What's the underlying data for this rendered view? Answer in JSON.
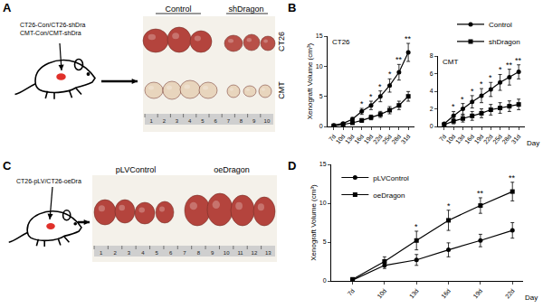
{
  "panels": {
    "A": {
      "label": "A",
      "cell_lines": [
        "CT26-Con/CT26-shDra",
        "CMT-Con/CMT-shDra"
      ],
      "groups": [
        "Control",
        "shDragon"
      ],
      "rows": [
        "CT26",
        "CMT"
      ],
      "ruler": [
        1,
        2,
        3,
        4,
        5,
        6,
        7,
        8,
        9,
        10
      ]
    },
    "B": {
      "label": "B"
    },
    "C": {
      "label": "C",
      "cell_lines": [
        "CT26-pLV/CT26-oeDra"
      ],
      "groups": [
        "pLVControl",
        "oeDragon"
      ],
      "ruler": [
        1,
        2,
        3,
        4,
        5,
        6,
        7,
        8,
        9,
        10,
        11,
        12,
        13
      ]
    },
    "D": {
      "label": "D"
    }
  },
  "chart_data": [
    {
      "type": "line",
      "title": "CT26",
      "y_label": "Xenograft Volume (cm³)",
      "x": [
        7,
        10,
        13,
        16,
        19,
        22,
        25,
        28,
        31
      ],
      "xlim": [
        5,
        33
      ],
      "xticks": [
        {
          "value": 7,
          "label": "7d"
        },
        {
          "value": 10,
          "label": "10d"
        },
        {
          "value": 13,
          "label": "13d"
        },
        {
          "value": 16,
          "label": "16d"
        },
        {
          "value": 19,
          "label": "19d"
        },
        {
          "value": 22,
          "label": "22d"
        },
        {
          "value": 25,
          "label": "25d"
        },
        {
          "value": 28,
          "label": "28d"
        },
        {
          "value": 31,
          "label": "31d"
        }
      ],
      "ylim": [
        0,
        15
      ],
      "yticks": [
        0,
        5,
        10,
        15
      ],
      "series": [
        {
          "name": "Control",
          "color": "#000000",
          "marker": "circle",
          "values": [
            0.2,
            0.5,
            1.2,
            2.5,
            3.5,
            5.0,
            6.8,
            9.0,
            12.3
          ],
          "errors": [
            0.05,
            0.1,
            0.3,
            0.5,
            0.7,
            0.9,
            1.1,
            1.3,
            1.5
          ]
        },
        {
          "name": "shDragon",
          "color": "#000000",
          "marker": "square",
          "values": [
            0.1,
            0.3,
            0.6,
            1.0,
            1.5,
            2.0,
            2.7,
            3.5,
            5.0
          ],
          "errors": [
            0.05,
            0.1,
            0.2,
            0.3,
            0.4,
            0.5,
            0.6,
            0.7,
            0.8
          ]
        }
      ],
      "annotations": [
        {
          "x": 16,
          "text": "*"
        },
        {
          "x": 19,
          "text": "*"
        },
        {
          "x": 22,
          "text": "*"
        },
        {
          "x": 25,
          "text": "*"
        },
        {
          "x": 28,
          "text": "**"
        },
        {
          "x": 31,
          "text": "**"
        }
      ]
    },
    {
      "type": "line",
      "title": "CMT",
      "x_label": "Day",
      "legend": "top right",
      "x": [
        7,
        10,
        13,
        16,
        19,
        22,
        25,
        28,
        31
      ],
      "xlim": [
        5,
        33
      ],
      "xticks": [
        {
          "value": 7,
          "label": "7d"
        },
        {
          "value": 10,
          "label": "10d"
        },
        {
          "value": 13,
          "label": "13d"
        },
        {
          "value": 16,
          "label": "16d"
        },
        {
          "value": 19,
          "label": "19d"
        },
        {
          "value": 22,
          "label": "22d"
        },
        {
          "value": 25,
          "label": "25d"
        },
        {
          "value": 28,
          "label": "28d"
        },
        {
          "value": 31,
          "label": "31d"
        }
      ],
      "ylim": [
        0,
        8
      ],
      "yticks": [
        0,
        2,
        4,
        6,
        8
      ],
      "series": [
        {
          "name": "Control",
          "color": "#000000",
          "marker": "circle",
          "values": [
            0.3,
            1.2,
            2.0,
            2.8,
            3.5,
            4.2,
            5.0,
            5.6,
            6.2
          ],
          "errors": [
            0.1,
            0.5,
            0.6,
            0.7,
            0.8,
            0.8,
            0.9,
            0.9,
            0.8
          ]
        },
        {
          "name": "shDragon",
          "color": "#000000",
          "marker": "square",
          "values": [
            0.2,
            0.6,
            0.9,
            1.2,
            1.5,
            1.9,
            2.1,
            2.3,
            2.5
          ],
          "errors": [
            0.1,
            0.3,
            0.4,
            0.5,
            0.5,
            0.6,
            0.6,
            0.6,
            0.6
          ]
        }
      ],
      "annotations": [
        {
          "x": 10,
          "text": "*"
        },
        {
          "x": 13,
          "text": "*"
        },
        {
          "x": 16,
          "text": "*"
        },
        {
          "x": 19,
          "text": "*"
        },
        {
          "x": 22,
          "text": "*"
        },
        {
          "x": 25,
          "text": "*"
        },
        {
          "x": 28,
          "text": "**"
        },
        {
          "x": 31,
          "text": "**"
        }
      ]
    },
    {
      "type": "line",
      "y_label": "Xenograft Volume (cm³)",
      "x_label": "Day",
      "legend": "top left",
      "x": [
        7,
        10,
        13,
        16,
        19,
        22
      ],
      "xlim": [
        5,
        23
      ],
      "xticks": [
        {
          "value": 7,
          "label": "7d"
        },
        {
          "value": 10,
          "label": "10d"
        },
        {
          "value": 13,
          "label": "13d"
        },
        {
          "value": 16,
          "label": "16d"
        },
        {
          "value": 19,
          "label": "19d"
        },
        {
          "value": 22,
          "label": "22d"
        }
      ],
      "ylim": [
        0,
        15
      ],
      "yticks": [
        0,
        5,
        10,
        15
      ],
      "series": [
        {
          "name": "pLVControl",
          "color": "#000000",
          "marker": "circle",
          "values": [
            0.1,
            2.0,
            2.7,
            4.0,
            5.2,
            6.5
          ],
          "errors": [
            0.1,
            0.4,
            0.7,
            0.9,
            0.8,
            1.0
          ]
        },
        {
          "name": "oeDragon",
          "color": "#000000",
          "marker": "square",
          "values": [
            0.2,
            2.5,
            5.2,
            7.8,
            9.7,
            11.5
          ],
          "errors": [
            0.1,
            0.6,
            1.2,
            1.3,
            1.0,
            1.2
          ]
        }
      ],
      "annotations": [
        {
          "x": 13,
          "text": "*"
        },
        {
          "x": 16,
          "text": "*"
        },
        {
          "x": 19,
          "text": "**"
        },
        {
          "x": 22,
          "text": "**"
        }
      ]
    }
  ]
}
